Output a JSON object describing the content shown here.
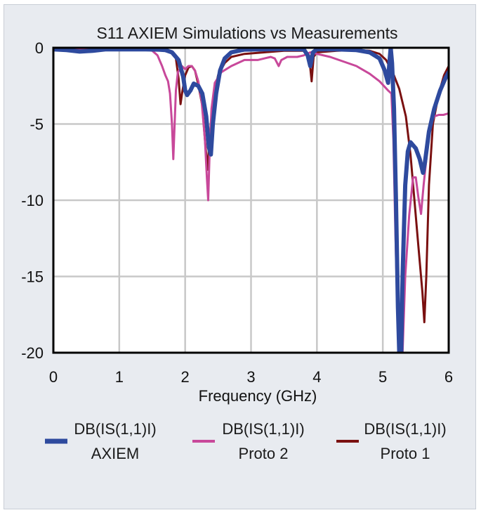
{
  "chart_data": {
    "type": "line",
    "title": "S11 AXIEM Simulations vs Measurements",
    "xlabel": "Frequency (GHz)",
    "ylabel": "",
    "xlim": [
      0,
      6
    ],
    "ylim": [
      -20,
      0
    ],
    "x_ticks": [
      "0",
      "1",
      "2",
      "3",
      "4",
      "5",
      "6"
    ],
    "y_ticks": [
      "0",
      "-5",
      "-10",
      "-15",
      "-20"
    ],
    "grid": true,
    "legend_position": "bottom",
    "series": [
      {
        "name_line1": "DB(IS(1,1)I)",
        "name_line2": "AXIEM",
        "color": "#2e4a9e",
        "points": [
          [
            0,
            -0.1
          ],
          [
            0.2,
            -0.15
          ],
          [
            0.4,
            -0.25
          ],
          [
            0.6,
            -0.2
          ],
          [
            0.8,
            -0.1
          ],
          [
            1.0,
            -0.1
          ],
          [
            1.2,
            -0.1
          ],
          [
            1.4,
            -0.1
          ],
          [
            1.6,
            -0.12
          ],
          [
            1.7,
            -0.15
          ],
          [
            1.8,
            -0.3
          ],
          [
            1.9,
            -0.8
          ],
          [
            1.97,
            -1.9
          ],
          [
            2.0,
            -2.8
          ],
          [
            2.03,
            -3.1
          ],
          [
            2.08,
            -2.8
          ],
          [
            2.13,
            -2.35
          ],
          [
            2.2,
            -2.5
          ],
          [
            2.26,
            -3.0
          ],
          [
            2.32,
            -4.5
          ],
          [
            2.36,
            -6.5
          ],
          [
            2.39,
            -7.0
          ],
          [
            2.42,
            -5.0
          ],
          [
            2.47,
            -3.0
          ],
          [
            2.53,
            -1.5
          ],
          [
            2.6,
            -0.7
          ],
          [
            2.7,
            -0.3
          ],
          [
            2.9,
            -0.12
          ],
          [
            3.2,
            -0.1
          ],
          [
            3.5,
            -0.08
          ],
          [
            3.8,
            -0.1
          ],
          [
            3.86,
            -0.5
          ],
          [
            3.9,
            -1.2
          ],
          [
            3.94,
            -0.3
          ],
          [
            4.0,
            -0.1
          ],
          [
            4.3,
            -0.1
          ],
          [
            4.6,
            -0.15
          ],
          [
            4.8,
            -0.3
          ],
          [
            4.95,
            -0.7
          ],
          [
            5.03,
            -1.5
          ],
          [
            5.08,
            -2.3
          ],
          [
            5.1,
            -1.0
          ],
          [
            5.12,
            0
          ],
          [
            5.14,
            -1.0
          ],
          [
            5.17,
            -4.0
          ],
          [
            5.2,
            -10.0
          ],
          [
            5.23,
            -17.0
          ],
          [
            5.25,
            -20
          ],
          [
            5.28,
            -20
          ],
          [
            5.3,
            -15.0
          ],
          [
            5.34,
            -9.0
          ],
          [
            5.38,
            -6.8
          ],
          [
            5.42,
            -6.2
          ],
          [
            5.5,
            -6.6
          ],
          [
            5.56,
            -7.3
          ],
          [
            5.61,
            -8.2
          ],
          [
            5.64,
            -7.5
          ],
          [
            5.7,
            -5.5
          ],
          [
            5.78,
            -4.0
          ],
          [
            5.87,
            -2.8
          ],
          [
            5.95,
            -2.0
          ],
          [
            6.0,
            -1.6
          ]
        ]
      },
      {
        "name_line1": "DB(IS(1,1)I)",
        "name_line2": "Proto 2",
        "color": "#c8489a",
        "points": [
          [
            0,
            -0.05
          ],
          [
            0.3,
            -0.05
          ],
          [
            0.6,
            -0.05
          ],
          [
            0.9,
            -0.05
          ],
          [
            1.2,
            -0.05
          ],
          [
            1.4,
            -0.1
          ],
          [
            1.5,
            -0.2
          ],
          [
            1.58,
            -0.5
          ],
          [
            1.65,
            -1.2
          ],
          [
            1.7,
            -1.8
          ],
          [
            1.74,
            -2.2
          ],
          [
            1.77,
            -3.0
          ],
          [
            1.8,
            -5.0
          ],
          [
            1.82,
            -7.3
          ],
          [
            1.84,
            -5.0
          ],
          [
            1.86,
            -2.8
          ],
          [
            1.89,
            -1.6
          ],
          [
            1.95,
            -1.2
          ],
          [
            2.0,
            -1.4
          ],
          [
            2.05,
            -1.2
          ],
          [
            2.1,
            -1.2
          ],
          [
            2.15,
            -1.5
          ],
          [
            2.2,
            -2.2
          ],
          [
            2.25,
            -3.5
          ],
          [
            2.3,
            -6.0
          ],
          [
            2.33,
            -8.5
          ],
          [
            2.35,
            -10.0
          ],
          [
            2.37,
            -7.0
          ],
          [
            2.4,
            -4.0
          ],
          [
            2.45,
            -2.3
          ],
          [
            2.55,
            -1.6
          ],
          [
            2.7,
            -1.2
          ],
          [
            2.9,
            -0.8
          ],
          [
            3.0,
            -0.8
          ],
          [
            3.1,
            -0.8
          ],
          [
            3.2,
            -0.7
          ],
          [
            3.3,
            -0.6
          ],
          [
            3.36,
            -0.7
          ],
          [
            3.42,
            -1.2
          ],
          [
            3.46,
            -0.8
          ],
          [
            3.55,
            -0.6
          ],
          [
            3.7,
            -0.6
          ],
          [
            3.8,
            -0.5
          ],
          [
            3.9,
            -0.3
          ],
          [
            4.0,
            -0.4
          ],
          [
            4.2,
            -0.6
          ],
          [
            4.4,
            -0.9
          ],
          [
            4.6,
            -1.2
          ],
          [
            4.8,
            -1.7
          ],
          [
            4.95,
            -2.2
          ],
          [
            5.08,
            -2.8
          ],
          [
            5.13,
            -3.0
          ],
          [
            5.16,
            -6.0
          ],
          [
            5.19,
            -12.0
          ],
          [
            5.22,
            -17.0
          ],
          [
            5.26,
            -20
          ],
          [
            5.3,
            -20
          ],
          [
            5.34,
            -15.0
          ],
          [
            5.4,
            -11.0
          ],
          [
            5.46,
            -8.5
          ],
          [
            5.5,
            -8.5
          ],
          [
            5.54,
            -9.8
          ],
          [
            5.58,
            -10.9
          ],
          [
            5.62,
            -9.0
          ],
          [
            5.68,
            -6.5
          ],
          [
            5.73,
            -5.0
          ],
          [
            5.78,
            -4.5
          ],
          [
            5.85,
            -4.4
          ],
          [
            5.92,
            -4.4
          ],
          [
            6.0,
            -4.3
          ]
        ]
      },
      {
        "name_line1": "DB(IS(1,1)I)",
        "name_line2": "Proto 1",
        "color": "#7a1010",
        "points": [
          [
            0,
            -0.05
          ],
          [
            0.3,
            -0.05
          ],
          [
            0.6,
            -0.05
          ],
          [
            0.9,
            -0.05
          ],
          [
            1.2,
            -0.05
          ],
          [
            1.5,
            -0.05
          ],
          [
            1.7,
            -0.1
          ],
          [
            1.8,
            -0.25
          ],
          [
            1.86,
            -0.7
          ],
          [
            1.9,
            -2.0
          ],
          [
            1.93,
            -3.7
          ],
          [
            1.96,
            -2.8
          ],
          [
            2.0,
            -1.8
          ],
          [
            2.05,
            -1.3
          ],
          [
            2.1,
            -1.2
          ],
          [
            2.15,
            -1.5
          ],
          [
            2.2,
            -2.4
          ],
          [
            2.26,
            -3.8
          ],
          [
            2.3,
            -6.0
          ],
          [
            2.34,
            -8.0
          ],
          [
            2.37,
            -6.0
          ],
          [
            2.42,
            -3.5
          ],
          [
            2.5,
            -1.8
          ],
          [
            2.6,
            -1.0
          ],
          [
            2.7,
            -0.6
          ],
          [
            2.9,
            -0.4
          ],
          [
            3.2,
            -0.3
          ],
          [
            3.5,
            -0.2
          ],
          [
            3.8,
            -0.2
          ],
          [
            3.88,
            -0.5
          ],
          [
            3.92,
            -2.2
          ],
          [
            3.95,
            -0.6
          ],
          [
            4.0,
            -0.3
          ],
          [
            4.3,
            -0.2
          ],
          [
            4.6,
            -0.15
          ],
          [
            4.8,
            -0.2
          ],
          [
            4.95,
            -0.4
          ],
          [
            5.05,
            -0.8
          ],
          [
            5.15,
            -1.6
          ],
          [
            5.25,
            -2.7
          ],
          [
            5.35,
            -4.5
          ],
          [
            5.42,
            -7.0
          ],
          [
            5.48,
            -10.0
          ],
          [
            5.54,
            -13.0
          ],
          [
            5.6,
            -16.0
          ],
          [
            5.63,
            -18.0
          ],
          [
            5.66,
            -15.0
          ],
          [
            5.7,
            -9.0
          ],
          [
            5.76,
            -5.0
          ],
          [
            5.85,
            -3.0
          ],
          [
            5.93,
            -1.8
          ],
          [
            6.0,
            -1.2
          ]
        ]
      }
    ]
  }
}
